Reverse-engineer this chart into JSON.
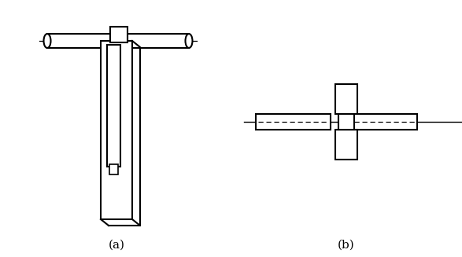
{
  "bg_color": "#ffffff",
  "line_color": "#000000",
  "fig_width": 5.87,
  "fig_height": 3.27,
  "dpi": 100,
  "label_a": "(a)",
  "label_b": "(b)",
  "label_fontsize": 11
}
